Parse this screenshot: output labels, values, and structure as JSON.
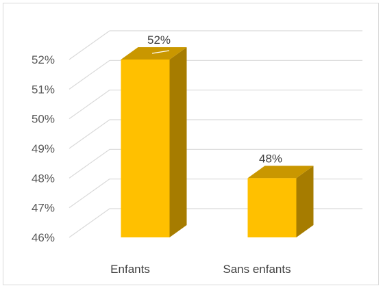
{
  "chart_data": {
    "type": "bar",
    "style": "3d-column",
    "categories": [
      "Enfants",
      "Sans enfants"
    ],
    "values": [
      52,
      48
    ],
    "data_labels": [
      "52%",
      "48%"
    ],
    "ylim": [
      46,
      52
    ],
    "yticks": [
      46,
      47,
      48,
      49,
      50,
      51,
      52
    ],
    "ytick_labels": [
      "46%",
      "47%",
      "48%",
      "49%",
      "50%",
      "51%",
      "52%"
    ],
    "grid": true,
    "legend": "none",
    "colors": {
      "bar_front": "#FFC000",
      "bar_side": "#A67C00",
      "bar_top": "#C99700",
      "grid": "#d9d9d9"
    }
  }
}
